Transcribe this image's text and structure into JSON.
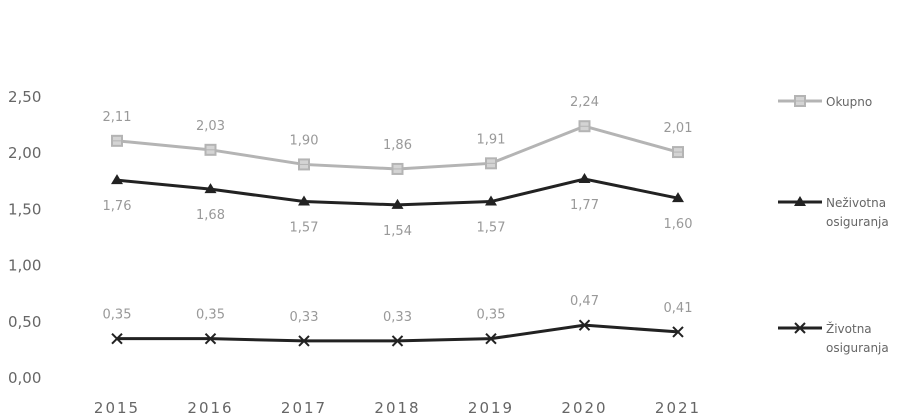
{
  "chart_data": {
    "type": "line",
    "categories": [
      "2015",
      "2016",
      "2017",
      "2018",
      "2019",
      "2020",
      "2021"
    ],
    "ylim": [
      0,
      2.5
    ],
    "yticks": [
      "0,00",
      "0,50",
      "1,00",
      "1,50",
      "2,00",
      "2,50"
    ],
    "grid": false,
    "legend_position": "right",
    "series": [
      {
        "name": "Okupno",
        "values": [
          2.11,
          2.03,
          1.9,
          1.86,
          1.91,
          2.24,
          2.01
        ],
        "labels": [
          "2,11",
          "2,03",
          "1,90",
          "1,86",
          "1,91",
          "2,24",
          "2,01"
        ],
        "color": "#b4b4b4",
        "marker": "square",
        "label_position": "above"
      },
      {
        "name": "Neživotna osiguranja",
        "values": [
          1.76,
          1.68,
          1.57,
          1.54,
          1.57,
          1.77,
          1.6
        ],
        "labels": [
          "1,76",
          "1,68",
          "1,57",
          "1,54",
          "1,57",
          "1,77",
          "1,60"
        ],
        "color": "#222222",
        "marker": "triangle",
        "label_position": "below"
      },
      {
        "name": "Životna osiguranja",
        "values": [
          0.35,
          0.35,
          0.33,
          0.33,
          0.35,
          0.47,
          0.41
        ],
        "labels": [
          "0,35",
          "0,35",
          "0,33",
          "0,33",
          "0,35",
          "0,47",
          "0,41"
        ],
        "color": "#222222",
        "marker": "x",
        "label_position": "above"
      }
    ],
    "legend": [
      {
        "lines": [
          "Okupno"
        ]
      },
      {
        "lines": [
          "Neživotna",
          "osiguranja"
        ]
      },
      {
        "lines": [
          "Životna",
          "osiguranja"
        ]
      }
    ]
  }
}
